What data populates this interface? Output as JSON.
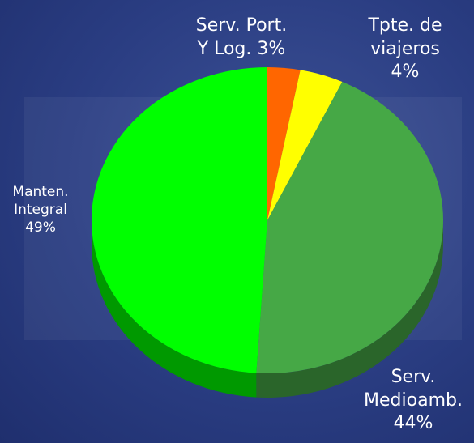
{
  "chart_data": {
    "type": "pie",
    "categories": [
      "Serv. Port. Y Log.",
      "Tpte. de viajeros",
      "Serv. Medioamb.",
      "Manten. Integral"
    ],
    "values": [
      3,
      4,
      44,
      49
    ],
    "value_labels": [
      "3%",
      "4%",
      "44%",
      "49%"
    ],
    "colors": [
      "#ff6600",
      "#ffff00",
      "#46a846",
      "#00ff00"
    ]
  }
}
